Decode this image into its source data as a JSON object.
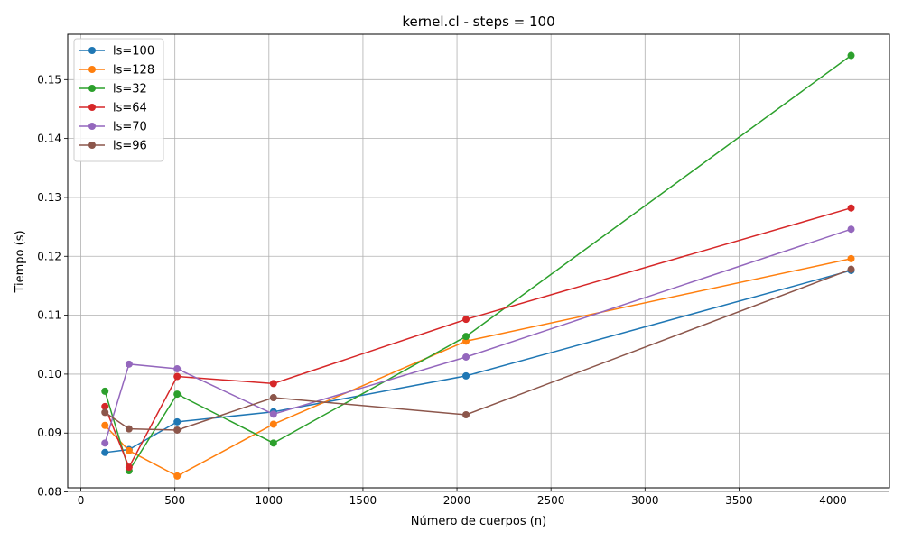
{
  "chart_data": {
    "type": "line",
    "title": "kernel.cl - steps = 100",
    "xlabel": "Número de cuerpos (n)",
    "ylabel": "Tiempo (s)",
    "xlim": [
      -70,
      4300
    ],
    "ylim": [
      0.0807,
      0.1577
    ],
    "xticks": [
      0,
      500,
      1000,
      1500,
      2000,
      2500,
      3000,
      3500,
      4000
    ],
    "yticks": [
      0.08,
      0.09,
      0.1,
      0.11,
      0.12,
      0.13,
      0.14,
      0.15
    ],
    "ytick_labels": [
      "0.08",
      "0.09",
      "0.10",
      "0.11",
      "0.12",
      "0.13",
      "0.14",
      "0.15"
    ],
    "grid": true,
    "legend_position": "top-left",
    "x": [
      128,
      256,
      512,
      1024,
      2048,
      4096
    ],
    "series": [
      {
        "name": "ls=100",
        "color": "#1f77b4",
        "values": [
          0.0867,
          0.0872,
          0.0919,
          0.0936,
          0.0997,
          0.1176
        ]
      },
      {
        "name": "ls=128",
        "color": "#ff7f0e",
        "values": [
          0.0913,
          0.087,
          0.0827,
          0.0915,
          0.1056,
          0.1196
        ]
      },
      {
        "name": "ls=32",
        "color": "#2ca02c",
        "values": [
          0.0971,
          0.0836,
          0.0966,
          0.0883,
          0.1064,
          0.1541
        ]
      },
      {
        "name": "ls=64",
        "color": "#d62728",
        "values": [
          0.0945,
          0.0842,
          0.0996,
          0.0984,
          0.1093,
          0.1282
        ]
      },
      {
        "name": "ls=70",
        "color": "#9467bd",
        "values": [
          0.0883,
          0.1017,
          0.1009,
          0.0932,
          0.1029,
          0.1246
        ]
      },
      {
        "name": "ls=96",
        "color": "#8c564b",
        "values": [
          0.0935,
          0.0907,
          0.0905,
          0.096,
          0.0931,
          0.1178
        ]
      }
    ]
  }
}
